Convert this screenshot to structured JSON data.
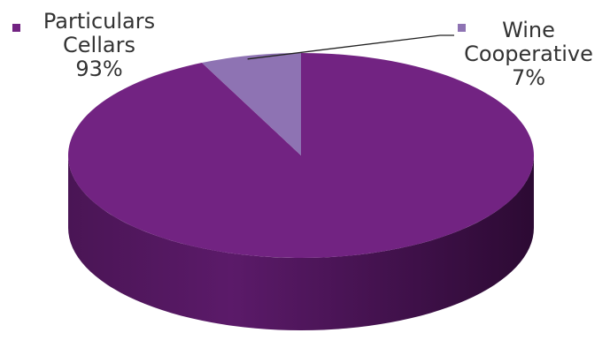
{
  "chart_data": {
    "type": "pie",
    "title": "",
    "slices": [
      {
        "name_lines": [
          "Particulars",
          "Cellars"
        ],
        "value": 93,
        "value_label": "93%",
        "color": "#722382"
      },
      {
        "name_lines": [
          "Wine",
          "Cooperative"
        ],
        "value": 7,
        "value_label": "7%",
        "color": "#8e73b3"
      }
    ],
    "style": "3d"
  }
}
